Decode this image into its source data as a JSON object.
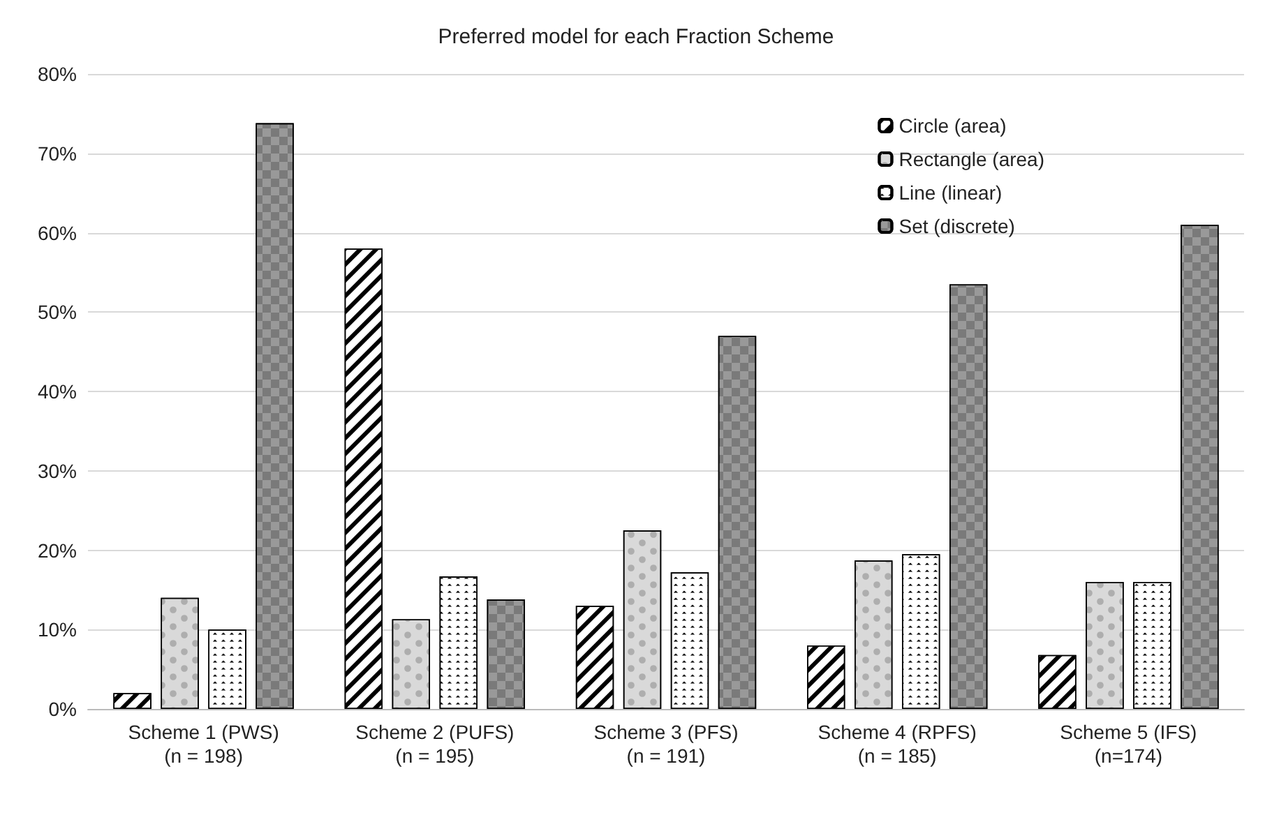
{
  "chart_data": {
    "type": "bar",
    "title": "Preferred model for each Fraction Scheme",
    "categories": [
      "Scheme 1 (PWS)\n(n = 198)",
      "Scheme 2 (PUFS)\n(n = 195)",
      "Scheme 3 (PFS)\n(n = 191)",
      "Scheme 4 (RPFS)\n(n = 185)",
      "Scheme 5 (IFS)\n(n=174)"
    ],
    "series": [
      {
        "name": "Circle (area)",
        "color": "#ffffff",
        "values": [
          2,
          58,
          13,
          8,
          6.8
        ]
      },
      {
        "name": "Rectangle (area)",
        "color": "#d9d9d9",
        "values": [
          14,
          11.3,
          22.5,
          18.7,
          16
        ]
      },
      {
        "name": "Line (linear)",
        "color": "#ffffff",
        "values": [
          10,
          16.7,
          17.2,
          19.5,
          16
        ]
      },
      {
        "name": "Set (discrete)",
        "color": "#999999",
        "values": [
          73.8,
          13.8,
          47,
          53.5,
          61
        ]
      }
    ],
    "ylim": [
      0,
      80
    ],
    "yticks": [
      {
        "value": 0,
        "label": "0%"
      },
      {
        "value": 10,
        "label": "10%"
      },
      {
        "value": 20,
        "label": "20%"
      },
      {
        "value": 30,
        "label": "30%"
      },
      {
        "value": 40,
        "label": "40%"
      },
      {
        "value": 50,
        "label": "50%"
      },
      {
        "value": 60,
        "label": "60%"
      },
      {
        "value": 70,
        "label": "70%"
      },
      {
        "value": 80,
        "label": "80%"
      }
    ],
    "grid": "y",
    "legend": "top right"
  }
}
